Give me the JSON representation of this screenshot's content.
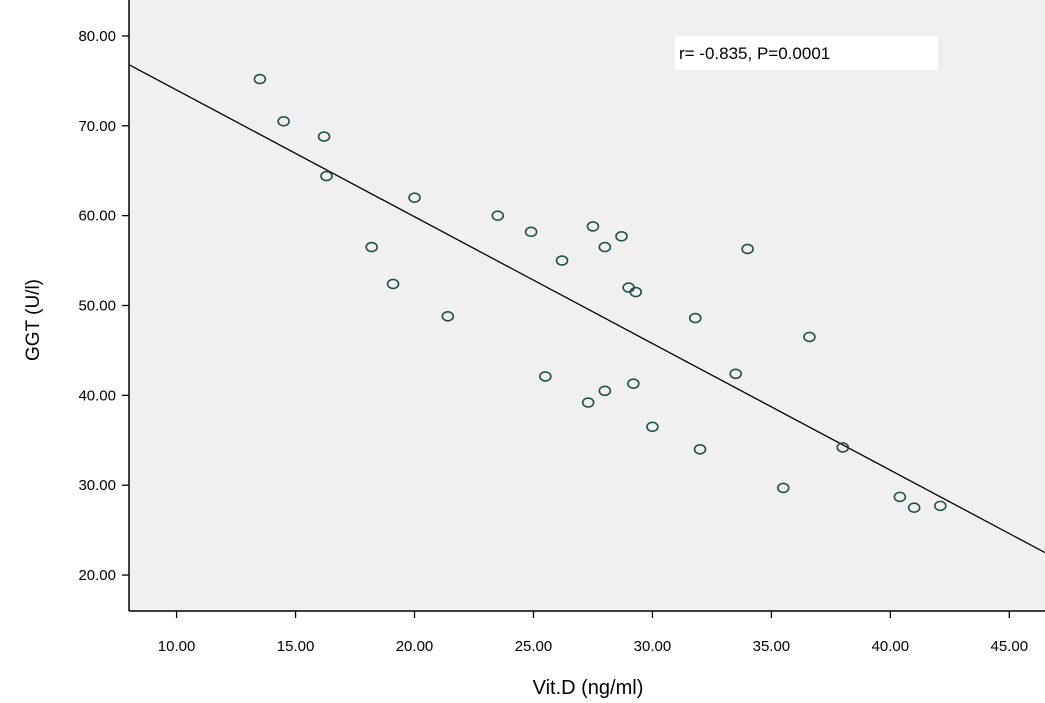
{
  "chart_data": {
    "type": "scatter",
    "xlabel": "Vit.D (ng/ml)",
    "ylabel": "GGT (U/l)",
    "xlim": [
      8,
      46.5
    ],
    "ylim": [
      16,
      84
    ],
    "x_ticks": [
      10,
      15,
      20,
      25,
      30,
      35,
      40,
      45
    ],
    "x_tick_labels": [
      "10.00",
      "15.00",
      "20.00",
      "25.00",
      "30.00",
      "35.00",
      "40.00",
      "45.00"
    ],
    "y_ticks": [
      20,
      30,
      40,
      50,
      60,
      70,
      80
    ],
    "y_tick_labels": [
      "20.00",
      "30.00",
      "40.00",
      "50.00",
      "60.00",
      "70.00",
      "80.00"
    ],
    "annotation": "r= -0.835,  P=0.0001",
    "grid": false,
    "background_color": "#f0f0f0",
    "marker_color": "#1f4f4f",
    "line_color": "#000000",
    "points": [
      {
        "x": 13.5,
        "y": 75.2
      },
      {
        "x": 14.5,
        "y": 70.5
      },
      {
        "x": 16.2,
        "y": 68.8
      },
      {
        "x": 16.3,
        "y": 64.4
      },
      {
        "x": 18.2,
        "y": 56.5
      },
      {
        "x": 19.1,
        "y": 52.4
      },
      {
        "x": 20.0,
        "y": 62.0
      },
      {
        "x": 21.4,
        "y": 48.8
      },
      {
        "x": 23.5,
        "y": 60.0
      },
      {
        "x": 24.9,
        "y": 58.2
      },
      {
        "x": 25.5,
        "y": 42.1
      },
      {
        "x": 26.2,
        "y": 55.0
      },
      {
        "x": 27.3,
        "y": 39.2
      },
      {
        "x": 27.5,
        "y": 58.8
      },
      {
        "x": 28.0,
        "y": 56.5
      },
      {
        "x": 28.0,
        "y": 40.5
      },
      {
        "x": 28.7,
        "y": 57.7
      },
      {
        "x": 29.0,
        "y": 52.0
      },
      {
        "x": 29.2,
        "y": 41.3
      },
      {
        "x": 29.3,
        "y": 51.5
      },
      {
        "x": 30.0,
        "y": 36.5
      },
      {
        "x": 31.8,
        "y": 48.6
      },
      {
        "x": 32.0,
        "y": 34.0
      },
      {
        "x": 33.5,
        "y": 42.4
      },
      {
        "x": 34.0,
        "y": 56.3
      },
      {
        "x": 35.5,
        "y": 29.7
      },
      {
        "x": 36.6,
        "y": 46.5
      },
      {
        "x": 38.0,
        "y": 34.2
      },
      {
        "x": 40.4,
        "y": 28.7
      },
      {
        "x": 41.0,
        "y": 27.5
      },
      {
        "x": 42.1,
        "y": 27.7
      }
    ],
    "fit_line": {
      "x1": 8,
      "y1": 76.8,
      "x2": 46.5,
      "y2": 22.5
    }
  }
}
